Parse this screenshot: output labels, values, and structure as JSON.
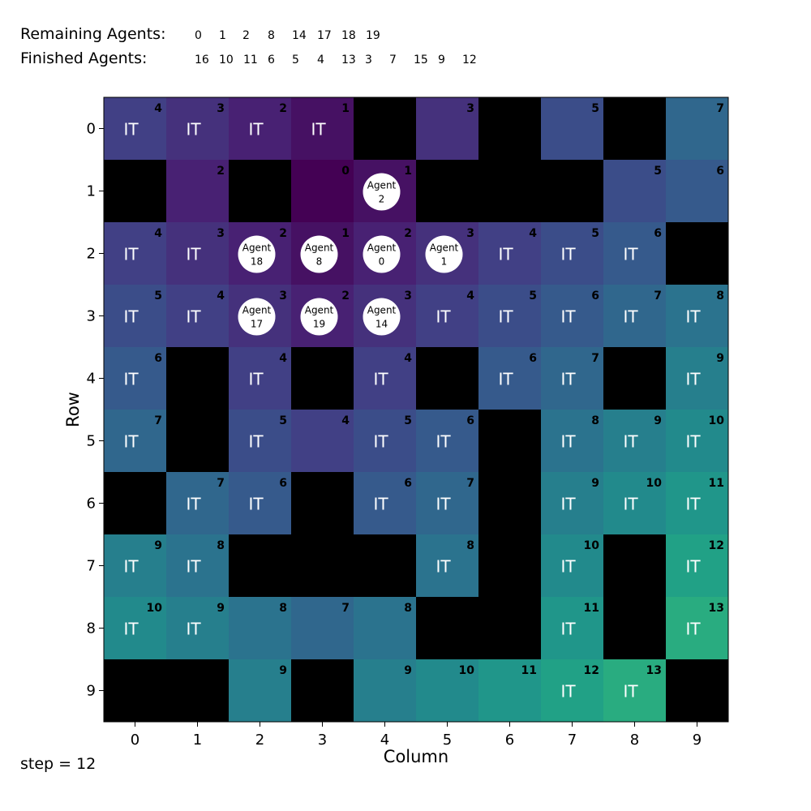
{
  "header": {
    "remaining_label": "Remaining Agents:",
    "finished_label": "Finished Agents:",
    "remaining": [
      "0",
      "1",
      "2",
      "8",
      "14",
      "17",
      "18",
      "19"
    ],
    "finished": [
      "16",
      "10",
      "11",
      "6",
      "5",
      "4",
      "13",
      "3",
      "7",
      "15",
      "9",
      "12"
    ]
  },
  "axes": {
    "xlabel": "Column",
    "ylabel": "Row",
    "col_ticks": [
      "0",
      "1",
      "2",
      "3",
      "4",
      "5",
      "6",
      "7",
      "8",
      "9"
    ],
    "row_ticks": [
      "0",
      "1",
      "2",
      "3",
      "4",
      "5",
      "6",
      "7",
      "8",
      "9"
    ]
  },
  "step_label": "step = 12",
  "marker_text": "IT",
  "agent_prefix": "Agent",
  "colors": {
    "obstacle": "#000000",
    "agent": "#ffffff",
    "marker": "#ffffff"
  },
  "grid": {
    "rows": 10,
    "cols": 10,
    "max_distance": 13,
    "distances": [
      [
        4,
        3,
        2,
        1,
        null,
        3,
        null,
        5,
        null,
        7
      ],
      [
        null,
        2,
        null,
        0,
        1,
        null,
        null,
        null,
        5,
        6
      ],
      [
        4,
        3,
        2,
        1,
        2,
        3,
        4,
        5,
        6,
        null
      ],
      [
        5,
        4,
        3,
        2,
        3,
        4,
        5,
        6,
        7,
        8
      ],
      [
        6,
        null,
        4,
        null,
        4,
        null,
        6,
        7,
        null,
        9
      ],
      [
        7,
        null,
        5,
        4,
        5,
        6,
        null,
        8,
        9,
        10
      ],
      [
        null,
        7,
        6,
        null,
        6,
        7,
        null,
        9,
        10,
        11
      ],
      [
        9,
        8,
        null,
        null,
        null,
        8,
        null,
        10,
        null,
        12
      ],
      [
        10,
        9,
        8,
        7,
        8,
        null,
        null,
        11,
        null,
        13
      ],
      [
        null,
        null,
        9,
        null,
        9,
        10,
        11,
        12,
        13,
        null
      ]
    ],
    "it_markers": [
      [
        0,
        0
      ],
      [
        0,
        1
      ],
      [
        0,
        2
      ],
      [
        0,
        3
      ],
      [
        2,
        0
      ],
      [
        2,
        1
      ],
      [
        2,
        6
      ],
      [
        2,
        7
      ],
      [
        2,
        8
      ],
      [
        3,
        0
      ],
      [
        3,
        1
      ],
      [
        3,
        5
      ],
      [
        3,
        6
      ],
      [
        3,
        7
      ],
      [
        3,
        8
      ],
      [
        3,
        9
      ],
      [
        4,
        0
      ],
      [
        4,
        2
      ],
      [
        4,
        4
      ],
      [
        4,
        6
      ],
      [
        4,
        7
      ],
      [
        4,
        9
      ],
      [
        5,
        0
      ],
      [
        5,
        2
      ],
      [
        5,
        4
      ],
      [
        5,
        5
      ],
      [
        5,
        7
      ],
      [
        5,
        8
      ],
      [
        5,
        9
      ],
      [
        6,
        1
      ],
      [
        6,
        2
      ],
      [
        6,
        4
      ],
      [
        6,
        5
      ],
      [
        6,
        7
      ],
      [
        6,
        8
      ],
      [
        6,
        9
      ],
      [
        7,
        0
      ],
      [
        7,
        1
      ],
      [
        7,
        5
      ],
      [
        7,
        7
      ],
      [
        7,
        9
      ],
      [
        8,
        0
      ],
      [
        8,
        1
      ],
      [
        8,
        7
      ],
      [
        8,
        9
      ],
      [
        9,
        7
      ],
      [
        9,
        8
      ]
    ],
    "agents": [
      {
        "id": "2",
        "row": 1,
        "col": 4
      },
      {
        "id": "18",
        "row": 2,
        "col": 2
      },
      {
        "id": "8",
        "row": 2,
        "col": 3
      },
      {
        "id": "0",
        "row": 2,
        "col": 4
      },
      {
        "id": "1",
        "row": 2,
        "col": 5
      },
      {
        "id": "17",
        "row": 3,
        "col": 2
      },
      {
        "id": "19",
        "row": 3,
        "col": 3
      },
      {
        "id": "14",
        "row": 3,
        "col": 4
      }
    ]
  }
}
